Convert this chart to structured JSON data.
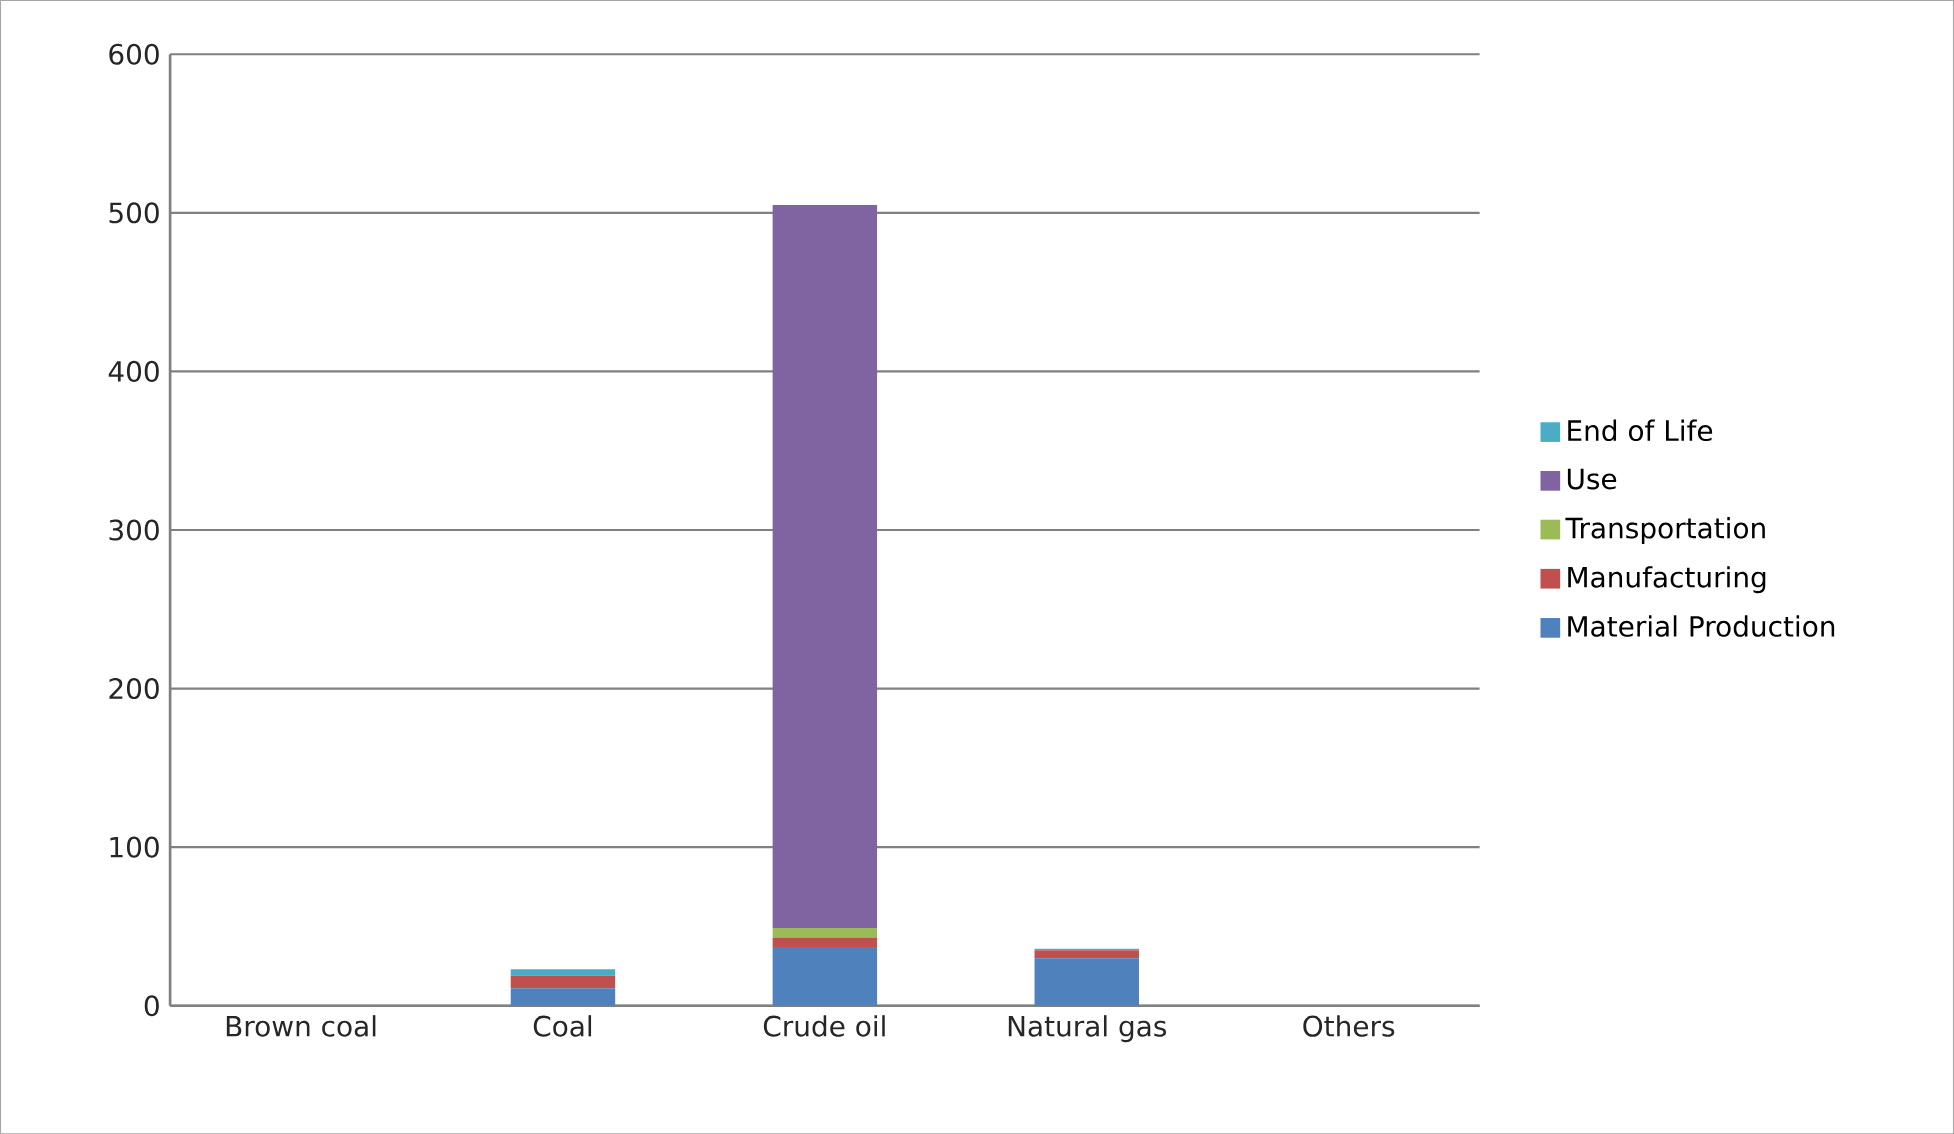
{
  "chart_data": {
    "type": "bar",
    "stacked": true,
    "categories": [
      "Brown coal",
      "Coal",
      "Crude oil",
      "Natural gas",
      "Others"
    ],
    "series": [
      {
        "name": "Material Production",
        "color": "#4f81bd",
        "values": [
          0,
          11,
          37,
          30,
          0
        ]
      },
      {
        "name": "Manufacturing",
        "color": "#c0504d",
        "values": [
          0,
          8,
          6,
          5,
          0
        ]
      },
      {
        "name": "Transportation",
        "color": "#9bbb59",
        "values": [
          0,
          0,
          6,
          0,
          0
        ]
      },
      {
        "name": "Use",
        "color": "#8064a2",
        "values": [
          0,
          0,
          456,
          0,
          0
        ]
      },
      {
        "name": "End of Life",
        "color": "#4bacc6",
        "values": [
          0,
          4,
          0,
          1,
          0
        ]
      }
    ],
    "ylim": [
      0,
      600
    ],
    "yticks": [
      0,
      100,
      200,
      300,
      400,
      500,
      600
    ],
    "grid": "y",
    "legend": "right"
  }
}
